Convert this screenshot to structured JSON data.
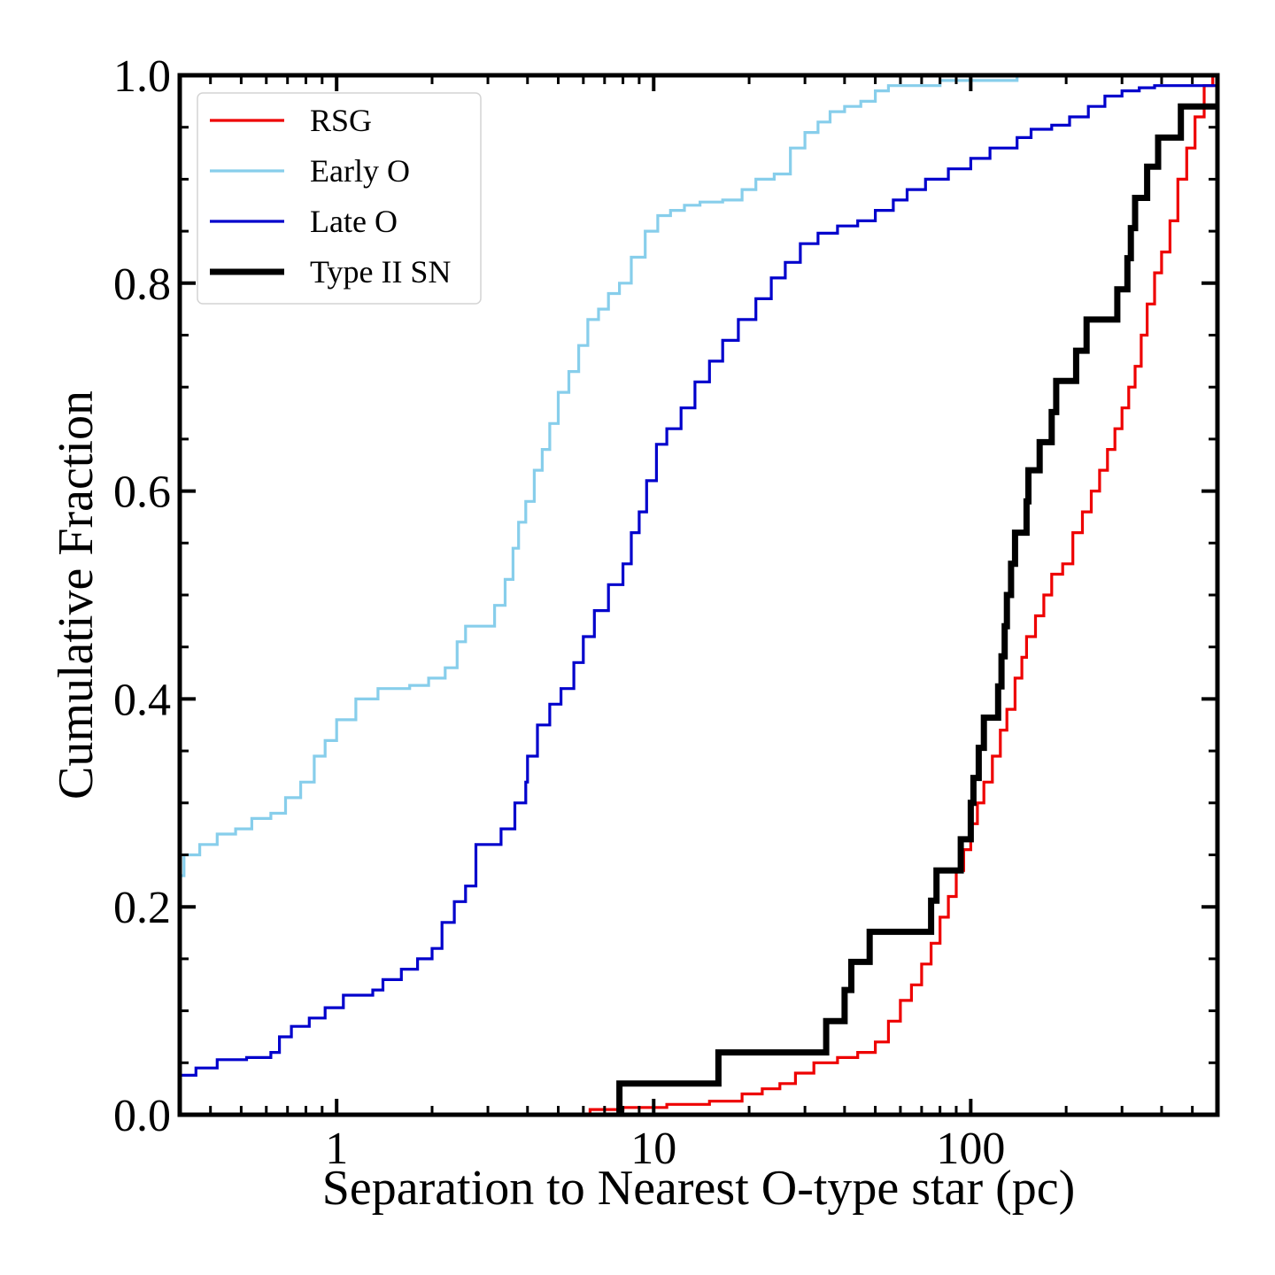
{
  "chart_data": {
    "type": "line",
    "title": "",
    "xlabel": "Separation to Nearest O-type star (pc)",
    "ylabel": "Cumulative Fraction",
    "xscale": "log",
    "xlim": [
      0.32,
      600
    ],
    "ylim": [
      0.0,
      1.0
    ],
    "grid": false,
    "legend_position": "top-left",
    "x_tick_labels": [
      "1",
      "10",
      "100"
    ],
    "x_tick_values": [
      1,
      10,
      100
    ],
    "y_tick_labels": [
      "0.0",
      "0.2",
      "0.4",
      "0.6",
      "0.8",
      "1.0"
    ],
    "y_tick_values": [
      0.0,
      0.2,
      0.4,
      0.6,
      0.8,
      1.0
    ],
    "series": [
      {
        "name": "RSG",
        "color": "#ee0000",
        "style": "thin",
        "steps": [
          [
            6.3,
            0.005
          ],
          [
            8.0,
            0.007
          ],
          [
            11.0,
            0.01
          ],
          [
            15.0,
            0.013
          ],
          [
            19.0,
            0.02
          ],
          [
            22.0,
            0.025
          ],
          [
            25.0,
            0.03
          ],
          [
            28.0,
            0.04
          ],
          [
            32.0,
            0.05
          ],
          [
            38.0,
            0.055
          ],
          [
            44.0,
            0.06
          ],
          [
            50.0,
            0.07
          ],
          [
            55.0,
            0.09
          ],
          [
            60.0,
            0.11
          ],
          [
            65.0,
            0.125
          ],
          [
            70.0,
            0.145
          ],
          [
            75.0,
            0.165
          ],
          [
            80.0,
            0.19
          ],
          [
            85.0,
            0.21
          ],
          [
            90.0,
            0.235
          ],
          [
            95.0,
            0.255
          ],
          [
            100.0,
            0.28
          ],
          [
            105.0,
            0.3
          ],
          [
            110.0,
            0.32
          ],
          [
            117.0,
            0.345
          ],
          [
            124.0,
            0.37
          ],
          [
            130.0,
            0.39
          ],
          [
            138.0,
            0.42
          ],
          [
            145.0,
            0.44
          ],
          [
            150.0,
            0.46
          ],
          [
            160.0,
            0.48
          ],
          [
            170.0,
            0.5
          ],
          [
            180.0,
            0.52
          ],
          [
            195.0,
            0.53
          ],
          [
            210.0,
            0.56
          ],
          [
            225.0,
            0.58
          ],
          [
            240.0,
            0.6
          ],
          [
            255.0,
            0.62
          ],
          [
            270.0,
            0.64
          ],
          [
            285.0,
            0.66
          ],
          [
            300.0,
            0.68
          ],
          [
            315.0,
            0.7
          ],
          [
            330.0,
            0.72
          ],
          [
            345.0,
            0.75
          ],
          [
            360.0,
            0.78
          ],
          [
            380.0,
            0.81
          ],
          [
            400.0,
            0.83
          ],
          [
            425.0,
            0.86
          ],
          [
            450.0,
            0.9
          ],
          [
            480.0,
            0.93
          ],
          [
            510.0,
            0.96
          ],
          [
            545.0,
            0.99
          ],
          [
            580.0,
            1.0
          ]
        ]
      },
      {
        "name": "Early O",
        "color": "#87ceeb",
        "style": "thin",
        "steps": [
          [
            0.32,
            0.23
          ],
          [
            0.33,
            0.25
          ],
          [
            0.37,
            0.26
          ],
          [
            0.42,
            0.27
          ],
          [
            0.48,
            0.275
          ],
          [
            0.54,
            0.285
          ],
          [
            0.62,
            0.29
          ],
          [
            0.69,
            0.305
          ],
          [
            0.77,
            0.32
          ],
          [
            0.85,
            0.345
          ],
          [
            0.92,
            0.36
          ],
          [
            1.0,
            0.38
          ],
          [
            1.15,
            0.4
          ],
          [
            1.35,
            0.41
          ],
          [
            1.7,
            0.413
          ],
          [
            1.95,
            0.42
          ],
          [
            2.2,
            0.43
          ],
          [
            2.4,
            0.455
          ],
          [
            2.55,
            0.47
          ],
          [
            2.85,
            0.47
          ],
          [
            3.15,
            0.49
          ],
          [
            3.4,
            0.515
          ],
          [
            3.6,
            0.545
          ],
          [
            3.75,
            0.57
          ],
          [
            3.95,
            0.59
          ],
          [
            4.2,
            0.62
          ],
          [
            4.45,
            0.64
          ],
          [
            4.7,
            0.665
          ],
          [
            5.0,
            0.695
          ],
          [
            5.4,
            0.715
          ],
          [
            5.8,
            0.74
          ],
          [
            6.2,
            0.765
          ],
          [
            6.7,
            0.775
          ],
          [
            7.2,
            0.79
          ],
          [
            7.8,
            0.8
          ],
          [
            8.5,
            0.825
          ],
          [
            9.4,
            0.85
          ],
          [
            10.3,
            0.865
          ],
          [
            11.3,
            0.87
          ],
          [
            12.5,
            0.875
          ],
          [
            14.0,
            0.878
          ],
          [
            16.5,
            0.88
          ],
          [
            19.0,
            0.89
          ],
          [
            21.0,
            0.9
          ],
          [
            24.0,
            0.905
          ],
          [
            27.0,
            0.93
          ],
          [
            30.0,
            0.945
          ],
          [
            33.0,
            0.955
          ],
          [
            36.0,
            0.965
          ],
          [
            40.0,
            0.97
          ],
          [
            45.0,
            0.975
          ],
          [
            50.0,
            0.985
          ],
          [
            55.0,
            0.99
          ],
          [
            80.0,
            0.995
          ],
          [
            140.0,
            1.0
          ]
        ]
      },
      {
        "name": "Late O",
        "color": "#0000cc",
        "style": "thin",
        "steps": [
          [
            0.32,
            0.038
          ],
          [
            0.36,
            0.045
          ],
          [
            0.42,
            0.053
          ],
          [
            0.52,
            0.055
          ],
          [
            0.62,
            0.06
          ],
          [
            0.66,
            0.075
          ],
          [
            0.72,
            0.085
          ],
          [
            0.82,
            0.093
          ],
          [
            0.92,
            0.103
          ],
          [
            1.05,
            0.115
          ],
          [
            1.3,
            0.12
          ],
          [
            1.4,
            0.13
          ],
          [
            1.6,
            0.14
          ],
          [
            1.8,
            0.15
          ],
          [
            2.0,
            0.16
          ],
          [
            2.15,
            0.185
          ],
          [
            2.35,
            0.205
          ],
          [
            2.55,
            0.22
          ],
          [
            2.75,
            0.26
          ],
          [
            3.3,
            0.275
          ],
          [
            3.65,
            0.3
          ],
          [
            3.95,
            0.32
          ],
          [
            4.0,
            0.345
          ],
          [
            4.3,
            0.375
          ],
          [
            4.7,
            0.395
          ],
          [
            5.1,
            0.41
          ],
          [
            5.6,
            0.435
          ],
          [
            6.0,
            0.46
          ],
          [
            6.5,
            0.485
          ],
          [
            7.2,
            0.51
          ],
          [
            8.0,
            0.53
          ],
          [
            8.5,
            0.56
          ],
          [
            9.0,
            0.58
          ],
          [
            9.5,
            0.61
          ],
          [
            10.2,
            0.645
          ],
          [
            11.0,
            0.66
          ],
          [
            12.2,
            0.68
          ],
          [
            13.5,
            0.705
          ],
          [
            15.0,
            0.725
          ],
          [
            16.5,
            0.745
          ],
          [
            18.5,
            0.765
          ],
          [
            21.0,
            0.785
          ],
          [
            23.5,
            0.805
          ],
          [
            26.0,
            0.82
          ],
          [
            29.0,
            0.838
          ],
          [
            33.0,
            0.848
          ],
          [
            38.0,
            0.855
          ],
          [
            44.0,
            0.86
          ],
          [
            50.0,
            0.87
          ],
          [
            57.0,
            0.88
          ],
          [
            63.0,
            0.89
          ],
          [
            72.0,
            0.9
          ],
          [
            85.0,
            0.91
          ],
          [
            100.0,
            0.92
          ],
          [
            115.0,
            0.93
          ],
          [
            140.0,
            0.94
          ],
          [
            155.0,
            0.948
          ],
          [
            180.0,
            0.952
          ],
          [
            205.0,
            0.96
          ],
          [
            235.0,
            0.97
          ],
          [
            265.0,
            0.98
          ],
          [
            300.0,
            0.985
          ],
          [
            340.0,
            0.988
          ],
          [
            380.0,
            0.99
          ],
          [
            600.0,
            0.99
          ]
        ]
      },
      {
        "name": "Type II SN",
        "color": "#000000",
        "style": "thick",
        "steps": [
          [
            7.8,
            0.03
          ],
          [
            16.0,
            0.06
          ],
          [
            35.0,
            0.09
          ],
          [
            40.0,
            0.12
          ],
          [
            42.0,
            0.147
          ],
          [
            48.0,
            0.176
          ],
          [
            75.0,
            0.206
          ],
          [
            78.0,
            0.235
          ],
          [
            93.0,
            0.265
          ],
          [
            100.0,
            0.3
          ],
          [
            102.0,
            0.324
          ],
          [
            106.0,
            0.353
          ],
          [
            110.0,
            0.382
          ],
          [
            122.0,
            0.412
          ],
          [
            125.0,
            0.441
          ],
          [
            128.0,
            0.47
          ],
          [
            130.0,
            0.5
          ],
          [
            134.0,
            0.53
          ],
          [
            138.0,
            0.56
          ],
          [
            150.0,
            0.59
          ],
          [
            152.0,
            0.62
          ],
          [
            165.0,
            0.647
          ],
          [
            180.0,
            0.676
          ],
          [
            186.0,
            0.706
          ],
          [
            215.0,
            0.735
          ],
          [
            232.0,
            0.765
          ],
          [
            290.0,
            0.794
          ],
          [
            312.0,
            0.824
          ],
          [
            320.0,
            0.853
          ],
          [
            330.0,
            0.882
          ],
          [
            360.0,
            0.912
          ],
          [
            390.0,
            0.94
          ],
          [
            460.0,
            0.97
          ],
          [
            600.0,
            0.97
          ]
        ]
      }
    ]
  }
}
